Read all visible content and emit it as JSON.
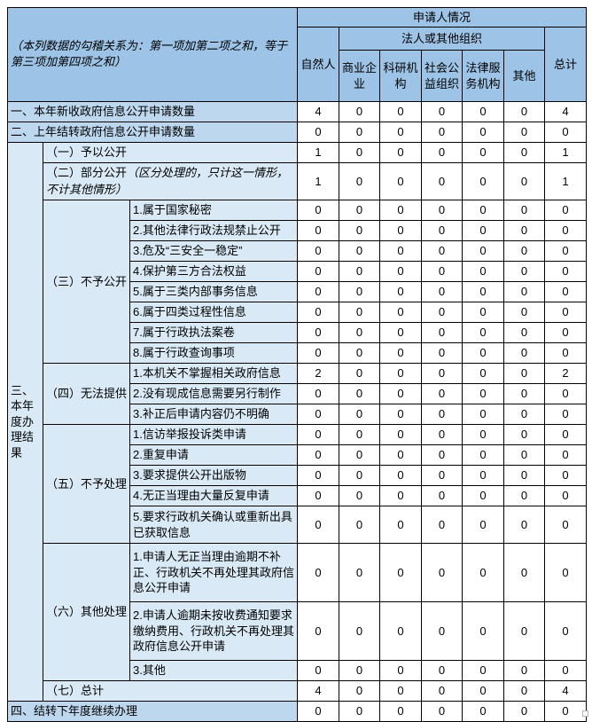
{
  "table": {
    "note": "（本列数据的勾稽关系为：第一项加第二项之和，等于第三项加第四项之和）",
    "header": {
      "top": "申请人情况",
      "natural_person": "自然人",
      "legal_org": "法人或其他组织",
      "org_columns": [
        "商业企业",
        "科研机构",
        "社会公益组织",
        "法律服务机构",
        "其他"
      ],
      "total": "总计"
    },
    "rows": {
      "r1": {
        "label": "一、本年新收政府信息公开申请数量",
        "values": [
          4,
          0,
          0,
          0,
          0,
          0,
          4
        ]
      },
      "r2": {
        "label": "二、上年结转政府信息公开申请数量",
        "values": [
          0,
          0,
          0,
          0,
          0,
          0,
          0
        ]
      },
      "section3": {
        "label": "三、本年度办理结果"
      },
      "s1": {
        "label": "（一）予以公开",
        "values": [
          1,
          0,
          0,
          0,
          0,
          0,
          1
        ]
      },
      "s2": {
        "label": "（二）部分公开",
        "note": "（区分处理的，只计这一情形，不计其他情形）",
        "values": [
          1,
          0,
          0,
          0,
          0,
          0,
          1
        ]
      },
      "g3": {
        "label": "（三）不予公开",
        "items": [
          {
            "label": "1.属于国家秘密",
            "values": [
              0,
              0,
              0,
              0,
              0,
              0,
              0
            ]
          },
          {
            "label": "2.其他法律行政法规禁止公开",
            "values": [
              0,
              0,
              0,
              0,
              0,
              0,
              0
            ]
          },
          {
            "label": "3.危及“三安全一稳定”",
            "values": [
              0,
              0,
              0,
              0,
              0,
              0,
              0
            ]
          },
          {
            "label": "4.保护第三方合法权益",
            "values": [
              0,
              0,
              0,
              0,
              0,
              0,
              0
            ]
          },
          {
            "label": "5.属于三类内部事务信息",
            "values": [
              0,
              0,
              0,
              0,
              0,
              0,
              0
            ]
          },
          {
            "label": "6.属于四类过程性信息",
            "values": [
              0,
              0,
              0,
              0,
              0,
              0,
              0
            ]
          },
          {
            "label": "7.属于行政执法案卷",
            "values": [
              0,
              0,
              0,
              0,
              0,
              0,
              0
            ]
          },
          {
            "label": "8.属于行政查询事项",
            "values": [
              0,
              0,
              0,
              0,
              0,
              0,
              0
            ]
          }
        ]
      },
      "g4": {
        "label": "（四）无法提供",
        "items": [
          {
            "label": "1.本机关不掌握相关政府信息",
            "values": [
              2,
              0,
              0,
              0,
              0,
              0,
              2
            ]
          },
          {
            "label": "2.没有现成信息需要另行制作",
            "values": [
              0,
              0,
              0,
              0,
              0,
              0,
              0
            ]
          },
          {
            "label": "3.补正后申请内容仍不明确",
            "values": [
              0,
              0,
              0,
              0,
              0,
              0,
              0
            ]
          }
        ]
      },
      "g5": {
        "label": "（五）不予处理",
        "items": [
          {
            "label": "1.信访举报投诉类申请",
            "values": [
              0,
              0,
              0,
              0,
              0,
              0,
              0
            ]
          },
          {
            "label": "2.重复申请",
            "values": [
              0,
              0,
              0,
              0,
              0,
              0,
              0
            ]
          },
          {
            "label": "3.要求提供公开出版物",
            "values": [
              0,
              0,
              0,
              0,
              0,
              0,
              0
            ]
          },
          {
            "label": "4.无正当理由大量反复申请",
            "values": [
              0,
              0,
              0,
              0,
              0,
              0,
              0
            ]
          },
          {
            "label": "5.要求行政机关确认或重新出具已获取信息",
            "values": [
              0,
              0,
              0,
              0,
              0,
              0,
              0
            ]
          }
        ]
      },
      "g6": {
        "label": "（六）其他处理",
        "items": [
          {
            "label": "1.申请人无正当理由逾期不补正、行政机关不再处理其政府信息公开申请",
            "values": [
              0,
              0,
              0,
              0,
              0,
              0,
              0
            ]
          },
          {
            "label": "2.申请人逾期未按收费通知要求缴纳费用、行政机关不再处理其政府信息公开申请",
            "values": [
              0,
              0,
              0,
              0,
              0,
              0,
              0
            ]
          },
          {
            "label": "3.其他",
            "values": [
              0,
              0,
              0,
              0,
              0,
              0,
              0
            ]
          }
        ]
      },
      "s7": {
        "label": "（七）总计",
        "values": [
          4,
          0,
          0,
          0,
          0,
          0,
          4
        ]
      },
      "r4": {
        "label": "四、结转下年度继续办理",
        "values": [
          0,
          0,
          0,
          0,
          0,
          0,
          0
        ]
      }
    }
  },
  "colors": {
    "header_blue": "#9DC3E6",
    "row_blue": "#BDD7EE",
    "sub_row_blue": "#D9EAF6",
    "border": "#000000"
  },
  "icons": {
    "end_marker": "small-empty-square"
  }
}
